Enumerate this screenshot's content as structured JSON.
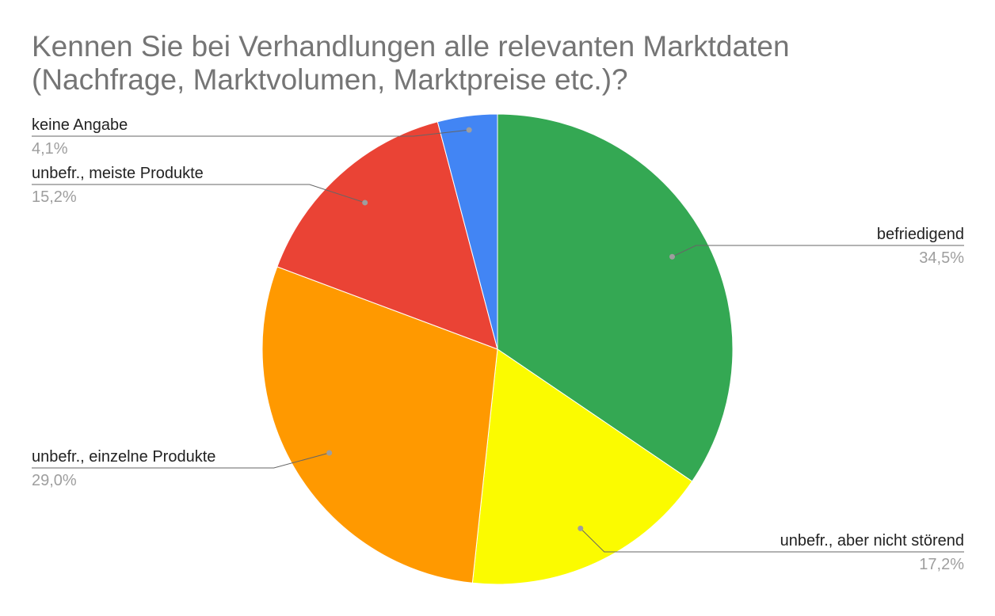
{
  "chart_data": {
    "type": "pie",
    "title_lines": [
      "Kennen Sie bei Verhandlungen alle relevanten Marktdaten",
      "(Nachfrage, Marktvolumen, Marktpreise etc.)?"
    ],
    "slices": [
      {
        "label": "befriedigend",
        "value": 34.5,
        "value_label": "34,5%",
        "color": "#34a853"
      },
      {
        "label": "unbefr., aber nicht störend",
        "value": 17.2,
        "value_label": "17,2%",
        "color": "#fbfb00"
      },
      {
        "label": "unbefr., einzelne Produkte",
        "value": 29.0,
        "value_label": "29,0%",
        "color": "#ff9900"
      },
      {
        "label": "unbefr., meiste Produkte",
        "value": 15.2,
        "value_label": "15,2%",
        "color": "#ea4335"
      },
      {
        "label": "keine Angabe",
        "value": 4.1,
        "value_label": "4,1%",
        "color": "#4285f4"
      }
    ],
    "start_angle": "12 o'clock",
    "direction": "clockwise",
    "legend": "none (labels with leader lines)"
  }
}
